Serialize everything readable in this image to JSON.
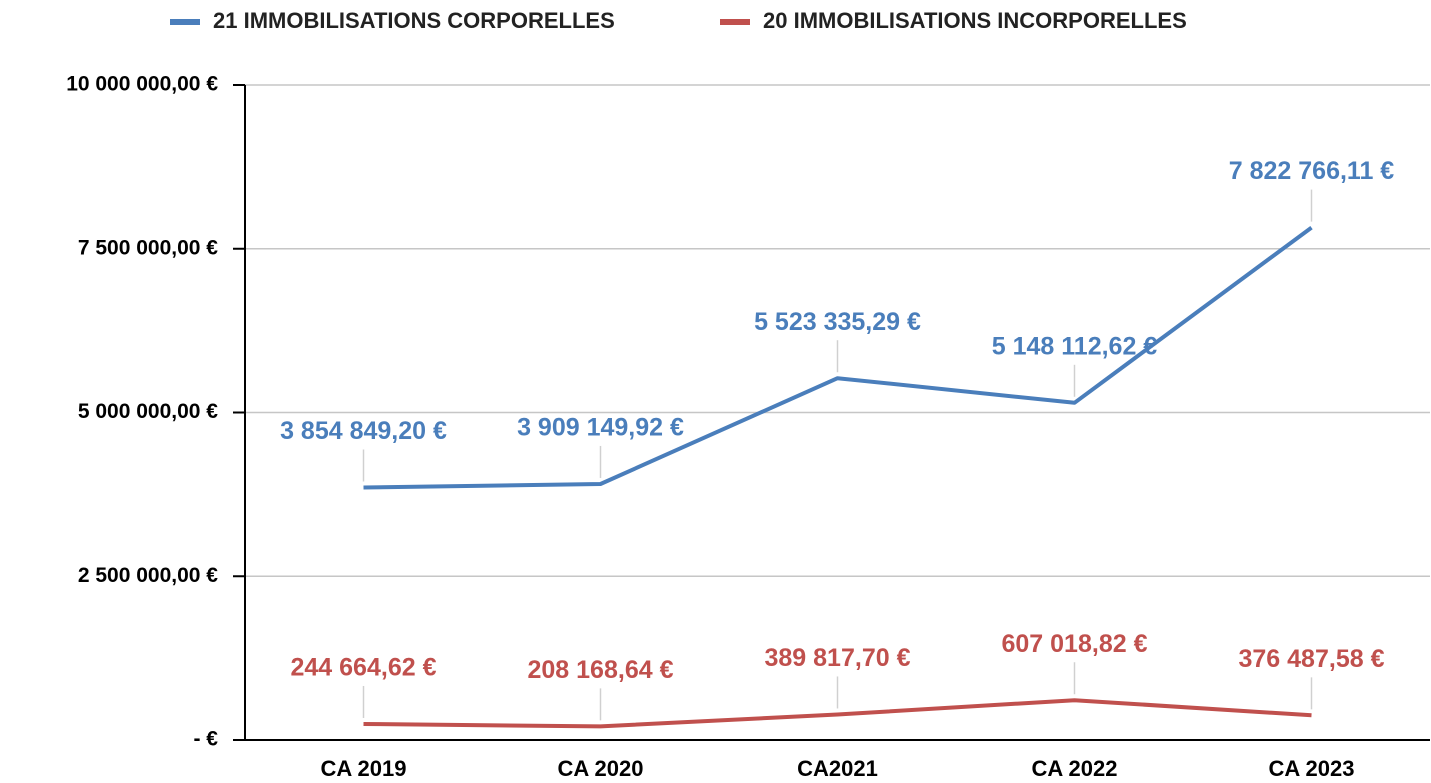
{
  "chart_data": {
    "type": "line",
    "categories": [
      "CA 2019",
      "CA 2020",
      "CA2021",
      "CA 2022",
      "CA 2023"
    ],
    "series": [
      {
        "name": "21 IMMOBILISATIONS CORPORELLES",
        "color": "#4a7ebb",
        "values": [
          3854849.2,
          3909149.92,
          5523335.29,
          5148112.62,
          7822766.11
        ],
        "value_labels": [
          "3 854 849,20  €",
          "3 909 149,92  €",
          "5 523 335,29  €",
          "5 148 112,62  €",
          "7 822 766,11  €"
        ]
      },
      {
        "name": "20 IMMOBILISATIONS INCORPORELLES",
        "color": "#c0504d",
        "values": [
          244664.62,
          208168.64,
          389817.7,
          607018.82,
          376487.58
        ],
        "value_labels": [
          "244 664,62  €",
          "208 168,64  €",
          "389 817,70  €",
          "607 018,82  €",
          "376 487,58  €"
        ]
      }
    ],
    "ylim": [
      0,
      10000000
    ],
    "yticks": [
      {
        "value": 0,
        "label": "-   €"
      },
      {
        "value": 2500000,
        "label": "2 500 000,00 €"
      },
      {
        "value": 5000000,
        "label": "5 000 000,00 €"
      },
      {
        "value": 7500000,
        "label": "7 500 000,00 €"
      },
      {
        "value": 10000000,
        "label": "10 000 000,00 €"
      }
    ],
    "grid": true
  }
}
